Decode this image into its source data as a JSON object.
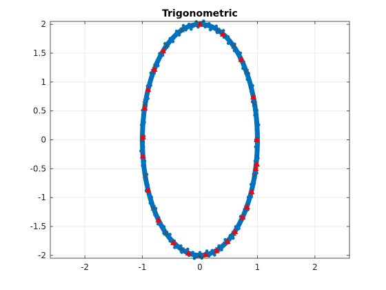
{
  "chart_data": {
    "type": "scatter",
    "title": "Trigonometric",
    "xlabel": "",
    "ylabel": "",
    "xlim": [
      -2.6,
      2.6
    ],
    "ylim": [
      -2.05,
      2.05
    ],
    "x_ticks": [
      -2,
      -1,
      0,
      1,
      2
    ],
    "y_ticks": [
      -2,
      -1.5,
      -1,
      -0.5,
      0,
      0.5,
      1,
      1.5,
      2
    ],
    "x_tick_labels": [
      "-2",
      "-1",
      "0",
      "1",
      "2"
    ],
    "y_tick_labels": [
      "-2",
      "-1.5",
      "-1",
      "-0.5",
      "0",
      "0.5",
      "1",
      "1.5",
      "2"
    ],
    "grid": true,
    "box": true,
    "series": [
      {
        "kind": "line",
        "curve": "ellipse",
        "equation": "x = cos(t), y = 2 sin(t)",
        "x_radius": 1,
        "y_radius": 2,
        "point_count": 400,
        "color": "#0072BD"
      },
      {
        "kind": "markers",
        "marker": "x",
        "color": "#4d4d4d",
        "x": [
          0.0,
          0.31,
          0.59,
          0.81,
          0.95,
          1.0,
          0.95,
          0.81,
          0.59,
          0.31,
          0.0,
          -0.31,
          -0.59,
          -0.81,
          -0.95,
          -1.0,
          -0.95,
          -0.81,
          -0.59,
          -0.31
        ],
        "y": [
          2.0,
          1.9,
          1.62,
          1.18,
          0.62,
          0.0,
          -0.62,
          -1.18,
          -1.62,
          -1.9,
          -2.0,
          -1.9,
          -1.62,
          -1.18,
          -0.62,
          0.0,
          0.62,
          1.18,
          1.62,
          1.9
        ]
      },
      {
        "kind": "markers",
        "marker": "triangle",
        "color": "#ff0000",
        "x": [
          0.0,
          0.4,
          0.72,
          0.93,
          0.99,
          0.99,
          0.97,
          0.9,
          0.82,
          0.74,
          0.61,
          0.48,
          0.29,
          0.1,
          -0.2,
          -0.46,
          -0.72,
          -0.9,
          -0.99,
          -0.99,
          -0.96,
          -0.9,
          -0.79,
          -0.64
        ],
        "y": [
          2.0,
          1.83,
          1.39,
          0.74,
          0.0,
          -0.42,
          -0.5,
          -0.9,
          -1.16,
          -1.34,
          -1.59,
          -1.76,
          -1.92,
          -1.99,
          -1.96,
          -1.78,
          -1.39,
          -0.87,
          -0.28,
          0.05,
          0.55,
          0.87,
          1.22,
          1.54
        ]
      }
    ]
  }
}
